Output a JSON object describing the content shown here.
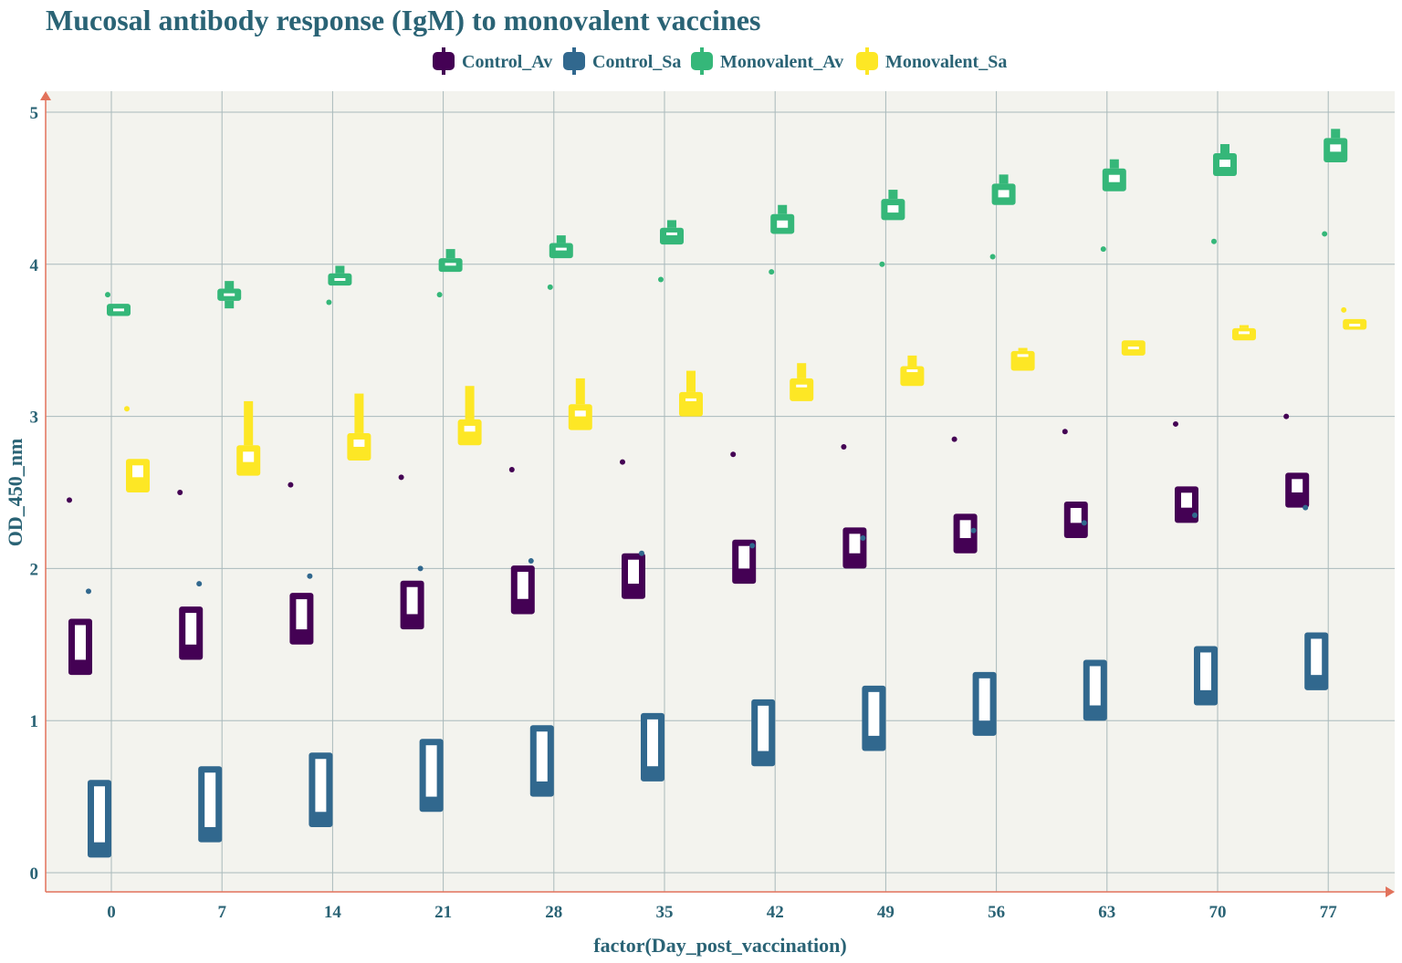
{
  "chart_data": {
    "type": "boxplot",
    "title": "Mucosal antibody response (IgM) to monovalent vaccines",
    "xlabel": "factor(Day_post_vaccination)",
    "ylabel": "OD_450_nm",
    "categories": [
      "0",
      "7",
      "14",
      "21",
      "28",
      "35",
      "42",
      "49",
      "56",
      "63",
      "70",
      "77"
    ],
    "ylim": [
      -0.12,
      5.13
    ],
    "yticks": [
      0,
      1,
      2,
      3,
      4,
      5
    ],
    "grid": true,
    "legend_position": "top",
    "colors": {
      "background": "#f3f3ee",
      "grid": "#a9b9bb",
      "axis": "#e2725b",
      "text": "#2a6375"
    },
    "series": [
      {
        "name": "Control_Av",
        "color": "#440154",
        "boxes": [
          {
            "q1": 1.3,
            "median": 1.4,
            "q3": 1.67,
            "whisker_low": 1.3,
            "whisker_high": 1.67,
            "outlier": 2.45
          },
          {
            "q1": 1.4,
            "median": 1.5,
            "q3": 1.75,
            "whisker_low": 1.4,
            "whisker_high": 1.75,
            "outlier": 2.5
          },
          {
            "q1": 1.5,
            "median": 1.6,
            "q3": 1.84,
            "whisker_low": 1.5,
            "whisker_high": 1.84,
            "outlier": 2.55
          },
          {
            "q1": 1.6,
            "median": 1.7,
            "q3": 1.92,
            "whisker_low": 1.6,
            "whisker_high": 1.92,
            "outlier": 2.6
          },
          {
            "q1": 1.7,
            "median": 1.8,
            "q3": 2.02,
            "whisker_low": 1.7,
            "whisker_high": 2.02,
            "outlier": 2.65
          },
          {
            "q1": 1.8,
            "median": 1.9,
            "q3": 2.1,
            "whisker_low": 1.8,
            "whisker_high": 2.1,
            "outlier": 2.7
          },
          {
            "q1": 1.9,
            "median": 2.0,
            "q3": 2.19,
            "whisker_low": 1.9,
            "whisker_high": 2.19,
            "outlier": 2.75
          },
          {
            "q1": 2.0,
            "median": 2.1,
            "q3": 2.27,
            "whisker_low": 2.0,
            "whisker_high": 2.27,
            "outlier": 2.8
          },
          {
            "q1": 2.1,
            "median": 2.2,
            "q3": 2.36,
            "whisker_low": 2.1,
            "whisker_high": 2.36,
            "outlier": 2.85
          },
          {
            "q1": 2.2,
            "median": 2.3,
            "q3": 2.44,
            "whisker_low": 2.2,
            "whisker_high": 2.44,
            "outlier": 2.9
          },
          {
            "q1": 2.3,
            "median": 2.4,
            "q3": 2.54,
            "whisker_low": 2.3,
            "whisker_high": 2.54,
            "outlier": 2.95
          },
          {
            "q1": 2.4,
            "median": 2.5,
            "q3": 2.63,
            "whisker_low": 2.4,
            "whisker_high": 2.63,
            "outlier": 3.0
          }
        ]
      },
      {
        "name": "Control_Sa",
        "color": "#31688e",
        "boxes": [
          {
            "q1": 0.1,
            "median": 0.2,
            "q3": 0.61,
            "whisker_low": 0.1,
            "whisker_high": 0.61,
            "outlier": 1.85
          },
          {
            "q1": 0.2,
            "median": 0.3,
            "q3": 0.7,
            "whisker_low": 0.2,
            "whisker_high": 0.7,
            "outlier": 1.9
          },
          {
            "q1": 0.3,
            "median": 0.4,
            "q3": 0.79,
            "whisker_low": 0.3,
            "whisker_high": 0.79,
            "outlier": 1.95
          },
          {
            "q1": 0.4,
            "median": 0.5,
            "q3": 0.88,
            "whisker_low": 0.4,
            "whisker_high": 0.88,
            "outlier": 2.0
          },
          {
            "q1": 0.5,
            "median": 0.6,
            "q3": 0.97,
            "whisker_low": 0.5,
            "whisker_high": 0.97,
            "outlier": 2.05
          },
          {
            "q1": 0.6,
            "median": 0.7,
            "q3": 1.05,
            "whisker_low": 0.6,
            "whisker_high": 1.05,
            "outlier": 2.1
          },
          {
            "q1": 0.7,
            "median": 0.8,
            "q3": 1.14,
            "whisker_low": 0.7,
            "whisker_high": 1.14,
            "outlier": 2.15
          },
          {
            "q1": 0.8,
            "median": 0.9,
            "q3": 1.23,
            "whisker_low": 0.8,
            "whisker_high": 1.23,
            "outlier": 2.2
          },
          {
            "q1": 0.9,
            "median": 1.0,
            "q3": 1.32,
            "whisker_low": 0.9,
            "whisker_high": 1.32,
            "outlier": 2.25
          },
          {
            "q1": 1.0,
            "median": 1.1,
            "q3": 1.4,
            "whisker_low": 1.0,
            "whisker_high": 1.4,
            "outlier": 2.3
          },
          {
            "q1": 1.1,
            "median": 1.2,
            "q3": 1.49,
            "whisker_low": 1.1,
            "whisker_high": 1.49,
            "outlier": 2.35
          },
          {
            "q1": 1.2,
            "median": 1.3,
            "q3": 1.58,
            "whisker_low": 1.2,
            "whisker_high": 1.58,
            "outlier": 2.4
          }
        ]
      },
      {
        "name": "Monovalent_Av",
        "color": "#35b779",
        "boxes": [
          {
            "q1": 3.66,
            "median": 3.7,
            "q3": 3.74,
            "whisker_low": 3.66,
            "whisker_high": 3.74,
            "outlier": 3.8
          },
          {
            "q1": 3.76,
            "median": 3.8,
            "q3": 3.84,
            "whisker_low": 3.71,
            "whisker_high": 3.89,
            "outlier": null
          },
          {
            "q1": 3.86,
            "median": 3.9,
            "q3": 3.94,
            "whisker_low": 3.86,
            "whisker_high": 3.99,
            "outlier": 3.75
          },
          {
            "q1": 3.95,
            "median": 4.0,
            "q3": 4.04,
            "whisker_low": 3.95,
            "whisker_high": 4.1,
            "outlier": 3.8
          },
          {
            "q1": 4.04,
            "median": 4.1,
            "q3": 4.14,
            "whisker_low": 4.04,
            "whisker_high": 4.19,
            "outlier": 3.85
          },
          {
            "q1": 4.13,
            "median": 4.2,
            "q3": 4.24,
            "whisker_low": 4.13,
            "whisker_high": 4.29,
            "outlier": 3.9
          },
          {
            "q1": 4.2,
            "median": 4.24,
            "q3": 4.33,
            "whisker_low": 4.2,
            "whisker_high": 4.39,
            "outlier": 3.95
          },
          {
            "q1": 4.29,
            "median": 4.34,
            "q3": 4.43,
            "whisker_low": 4.29,
            "whisker_high": 4.49,
            "outlier": 4.0
          },
          {
            "q1": 4.39,
            "median": 4.44,
            "q3": 4.53,
            "whisker_low": 4.39,
            "whisker_high": 4.59,
            "outlier": 4.05
          },
          {
            "q1": 4.48,
            "median": 4.54,
            "q3": 4.63,
            "whisker_low": 4.48,
            "whisker_high": 4.69,
            "outlier": 4.1
          },
          {
            "q1": 4.58,
            "median": 4.64,
            "q3": 4.73,
            "whisker_low": 4.58,
            "whisker_high": 4.79,
            "outlier": 4.15
          },
          {
            "q1": 4.67,
            "median": 4.74,
            "q3": 4.83,
            "whisker_low": 4.67,
            "whisker_high": 4.89,
            "outlier": 4.2
          }
        ]
      },
      {
        "name": "Monovalent_Sa",
        "color": "#fde725",
        "boxes": [
          {
            "q1": 2.5,
            "median": 2.6,
            "q3": 2.72,
            "whisker_low": 2.5,
            "whisker_high": 2.72,
            "outlier": 3.05
          },
          {
            "q1": 2.61,
            "median": 2.7,
            "q3": 2.81,
            "whisker_low": 2.61,
            "whisker_high": 3.1,
            "outlier": null
          },
          {
            "q1": 2.71,
            "median": 2.8,
            "q3": 2.89,
            "whisker_low": 2.71,
            "whisker_high": 3.15,
            "outlier": null
          },
          {
            "q1": 2.81,
            "median": 2.9,
            "q3": 2.98,
            "whisker_low": 2.81,
            "whisker_high": 3.2,
            "outlier": null
          },
          {
            "q1": 2.91,
            "median": 3.0,
            "q3": 3.08,
            "whisker_low": 2.91,
            "whisker_high": 3.25,
            "outlier": null
          },
          {
            "q1": 3.0,
            "median": 3.1,
            "q3": 3.16,
            "whisker_low": 3.0,
            "whisker_high": 3.3,
            "outlier": null
          },
          {
            "q1": 3.1,
            "median": 3.2,
            "q3": 3.25,
            "whisker_low": 3.1,
            "whisker_high": 3.35,
            "outlier": null
          },
          {
            "q1": 3.2,
            "median": 3.3,
            "q3": 3.33,
            "whisker_low": 3.2,
            "whisker_high": 3.4,
            "outlier": null
          },
          {
            "q1": 3.3,
            "median": 3.4,
            "q3": 3.43,
            "whisker_low": 3.3,
            "whisker_high": 3.45,
            "outlier": null
          },
          {
            "q1": 3.4,
            "median": 3.45,
            "q3": 3.5,
            "whisker_low": 3.4,
            "whisker_high": 3.5,
            "outlier": null
          },
          {
            "q1": 3.5,
            "median": 3.55,
            "q3": 3.58,
            "whisker_low": 3.5,
            "whisker_high": 3.6,
            "outlier": null
          },
          {
            "q1": 3.57,
            "median": 3.6,
            "q3": 3.64,
            "whisker_low": 3.57,
            "whisker_high": 3.64,
            "outlier": 3.7
          }
        ]
      }
    ]
  }
}
